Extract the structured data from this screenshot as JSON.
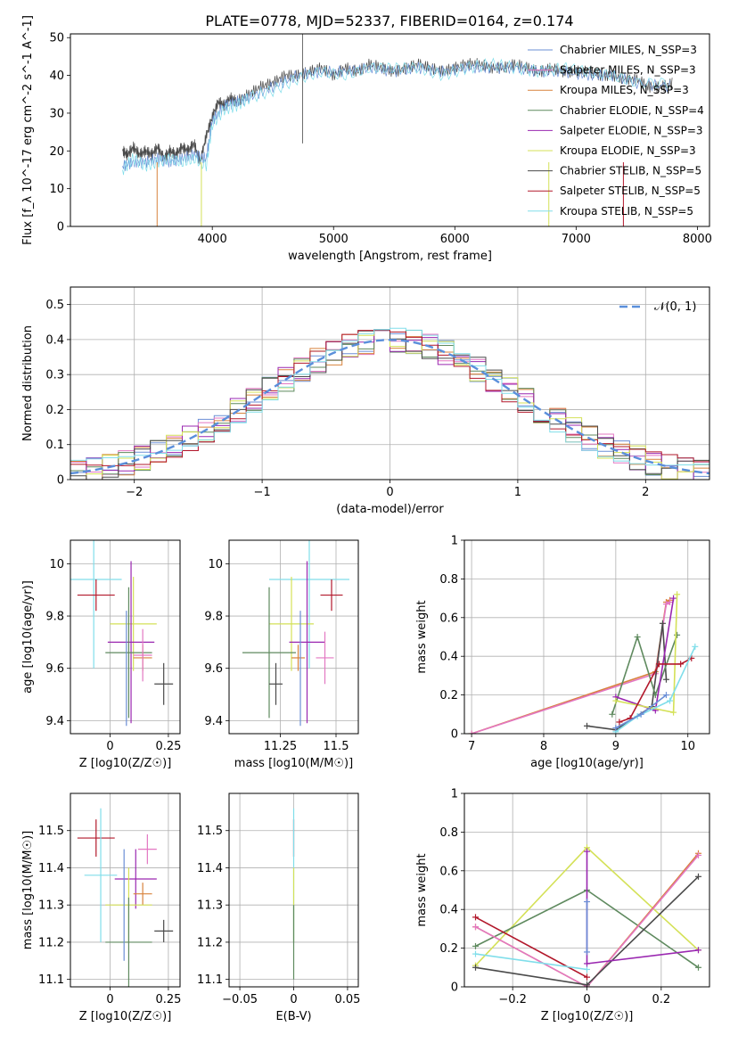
{
  "figure_title": "PLATE=0778, MJD=52337, FIBERID=0164, z=0.174",
  "colors": {
    "chabrier_miles": "#6b8fd6",
    "salpeter_miles": "#e377c2",
    "kroupa_miles": "#d8823c",
    "chabrier_elodie": "#5f8a5f",
    "salpeter_elodie": "#9a27b0",
    "kroupa_elodie": "#d4e157",
    "chabrier_stelib": "#4a4a4a",
    "salpeter_stelib": "#b2182b",
    "kroupa_stelib": "#80deea",
    "normal_curve": "#5a8fdb"
  },
  "chart_data": [
    {
      "id": "spectrum",
      "type": "line",
      "xlabel": "wavelength [Angstrom, rest frame]",
      "ylabel": "Flux [f_λ 10^-17 erg cm^-2 s^-1 A^-1]",
      "xlim": [
        2830,
        8100
      ],
      "ylim": [
        0,
        51
      ],
      "xticks": [
        4000,
        5000,
        6000,
        7000,
        8000
      ],
      "yticks": [
        0,
        10,
        20,
        30,
        40,
        50
      ],
      "grid": false,
      "legend_position": "top-right",
      "legend": [
        {
          "label": "Chabrier MILES, N_SSP=3",
          "color": "#6b8fd6"
        },
        {
          "label": "Salpeter MILES, N_SSP=3",
          "color": "#e377c2"
        },
        {
          "label": "Kroupa MILES, N_SSP=3",
          "color": "#d8823c"
        },
        {
          "label": "Chabrier ELODIE, N_SSP=4",
          "color": "#5f8a5f"
        },
        {
          "label": "Salpeter ELODIE, N_SSP=3",
          "color": "#9a27b0"
        },
        {
          "label": "Kroupa ELODIE, N_SSP=3",
          "color": "#d4e157"
        },
        {
          "label": "Chabrier STELIB, N_SSP=5",
          "color": "#4a4a4a"
        },
        {
          "label": "Salpeter STELIB, N_SSP=5",
          "color": "#b2182b"
        },
        {
          "label": "Kroupa STELIB, N_SSP=5",
          "color": "#80deea"
        }
      ],
      "series": [
        {
          "color": "#4a4a4a",
          "x": [
            3260,
            3300,
            3350,
            3400,
            3450,
            3500,
            3550,
            3600,
            3650,
            3700,
            3750,
            3800,
            3850,
            3900,
            3950,
            4000,
            4050,
            4100,
            4150,
            4200,
            4300,
            4400,
            4500,
            4600,
            4700,
            4800,
            4900,
            5000,
            5100,
            5200,
            5300,
            5400,
            5500,
            5600,
            5700,
            5800,
            5900,
            6000,
            6100,
            6200,
            6300,
            6400,
            6500,
            6600,
            6700,
            6800,
            6900,
            7000,
            7100,
            7200,
            7300,
            7400,
            7500,
            7600,
            7700,
            7800
          ],
          "y": [
            20,
            19,
            21,
            19,
            20,
            19,
            21,
            18,
            20,
            19,
            21,
            20,
            22,
            17,
            24,
            29,
            33,
            32,
            34,
            33,
            35,
            37,
            38,
            40,
            40,
            41,
            42,
            40,
            42,
            41,
            43,
            42,
            41,
            42,
            43,
            42,
            41,
            42,
            43,
            43,
            42,
            42,
            43,
            42,
            41,
            42,
            41,
            41,
            41,
            40,
            40,
            39,
            39,
            37,
            37,
            38
          ]
        },
        {
          "color": "#6b8fd6",
          "x": [
            3260,
            3350,
            3450,
            3550,
            3650,
            3750,
            3850,
            3950,
            4000,
            4100,
            4200,
            4300,
            4500,
            4700,
            4900,
            5100,
            5300,
            5500,
            5700,
            5900,
            6100,
            6300,
            6500,
            6700,
            6900,
            7100,
            7300,
            7500,
            7800
          ],
          "y": [
            16,
            17,
            17,
            18,
            17,
            18,
            19,
            18,
            28,
            32,
            33,
            34,
            37,
            40,
            41,
            41,
            42,
            41,
            42,
            41,
            42,
            42,
            42,
            41,
            41,
            40,
            40,
            38,
            37
          ]
        },
        {
          "color": "#80deea",
          "x": [
            3260,
            3350,
            3450,
            3550,
            3650,
            3750,
            3850,
            3950,
            4000,
            4100,
            4200,
            4300,
            4500,
            4700,
            4900,
            5100,
            5300,
            5500,
            5700,
            5900,
            6100,
            6300,
            6500,
            6700,
            6900,
            7100,
            7300,
            7500,
            7800
          ],
          "y": [
            15,
            18,
            16,
            17,
            18,
            17,
            18,
            16,
            27,
            31,
            32,
            34,
            36,
            39,
            41,
            40,
            42,
            42,
            42,
            40,
            42,
            43,
            42,
            41,
            42,
            41,
            40,
            38,
            38
          ]
        }
      ],
      "drops": [
        {
          "x": 3545,
          "color": "#d8823c"
        },
        {
          "x": 3910,
          "color": "#d4e157"
        },
        {
          "x": 6775,
          "color": "#d4e157"
        },
        {
          "x": 7390,
          "color": "#b2182b"
        }
      ]
    },
    {
      "id": "residuals",
      "type": "line",
      "xlabel": "(data-model)/error",
      "ylabel": "Normed distribution",
      "xlim": [
        -2.5,
        2.5
      ],
      "ylim": [
        0,
        0.55
      ],
      "xticks": [
        -2,
        -1,
        0,
        1,
        2
      ],
      "yticks": [
        0.0,
        0.1,
        0.2,
        0.3,
        0.4,
        0.5
      ],
      "grid": true,
      "legend_position": "top-right",
      "legend_label": "𝒩(0, 1)",
      "curve": "normal(0,1)"
    },
    {
      "id": "age_vs_Z",
      "type": "scatter",
      "xlabel": "Z [log10(Z/Z☉)]",
      "ylabel": "age  [log10(age/yr)]",
      "xlim": [
        -0.17,
        0.3
      ],
      "ylim": [
        9.35,
        10.09
      ],
      "xticks": [
        0.0,
        0.25
      ],
      "yticks": [
        9.4,
        9.6,
        9.8,
        10.0
      ],
      "grid": true,
      "points": [
        {
          "x": -0.07,
          "y": 9.94,
          "xerr": 0.12,
          "yerr": 0.34,
          "color": "#80deea"
        },
        {
          "x": -0.06,
          "y": 9.88,
          "xerr": 0.08,
          "yerr": 0.06,
          "color": "#b2182b"
        },
        {
          "x": 0.1,
          "y": 9.77,
          "xerr": 0.1,
          "yerr": 0.18,
          "color": "#d4e157"
        },
        {
          "x": 0.09,
          "y": 9.7,
          "xerr": 0.1,
          "yerr": 0.31,
          "color": "#9a27b0"
        },
        {
          "x": 0.08,
          "y": 9.66,
          "xerr": 0.1,
          "yerr": 0.25,
          "color": "#5f8a5f"
        },
        {
          "x": 0.14,
          "y": 9.64,
          "xerr": 0.04,
          "yerr": 0.05,
          "color": "#d8823c"
        },
        {
          "x": 0.14,
          "y": 9.65,
          "xerr": 0.04,
          "yerr": 0.1,
          "color": "#e377c2"
        },
        {
          "x": 0.23,
          "y": 9.54,
          "xerr": 0.04,
          "yerr": 0.08,
          "color": "#4a4a4a"
        },
        {
          "x": 0.07,
          "y": 9.6,
          "xerr": 0.0,
          "yerr": 0.22,
          "color": "#6b8fd6"
        }
      ]
    },
    {
      "id": "age_vs_mass",
      "type": "scatter",
      "xlabel": "mass [log10(M/M☉)]",
      "ylabel": "",
      "xlim": [
        11.02,
        11.6
      ],
      "ylim": [
        9.35,
        10.09
      ],
      "xticks": [
        11.25,
        11.5
      ],
      "yticks": [
        9.4,
        9.6,
        9.8,
        10.0
      ],
      "grid": true,
      "points": [
        {
          "x": 11.38,
          "y": 9.94,
          "xerr": 0.18,
          "yerr": 0.34,
          "color": "#80deea"
        },
        {
          "x": 11.48,
          "y": 9.88,
          "xerr": 0.05,
          "yerr": 0.06,
          "color": "#b2182b"
        },
        {
          "x": 11.3,
          "y": 9.77,
          "xerr": 0.1,
          "yerr": 0.18,
          "color": "#d4e157"
        },
        {
          "x": 11.37,
          "y": 9.7,
          "xerr": 0.08,
          "yerr": 0.31,
          "color": "#9a27b0"
        },
        {
          "x": 11.2,
          "y": 9.66,
          "xerr": 0.12,
          "yerr": 0.25,
          "color": "#5f8a5f"
        },
        {
          "x": 11.33,
          "y": 9.64,
          "xerr": 0.03,
          "yerr": 0.05,
          "color": "#d8823c"
        },
        {
          "x": 11.45,
          "y": 9.64,
          "xerr": 0.04,
          "yerr": 0.1,
          "color": "#e377c2"
        },
        {
          "x": 11.23,
          "y": 9.54,
          "xerr": 0.03,
          "yerr": 0.08,
          "color": "#4a4a4a"
        },
        {
          "x": 11.34,
          "y": 9.6,
          "xerr": 0.0,
          "yerr": 0.22,
          "color": "#6b8fd6"
        }
      ]
    },
    {
      "id": "weight_vs_age",
      "type": "line",
      "xlabel": "age  [log10(age/yr)]",
      "ylabel": "mass weight",
      "xlim": [
        6.9,
        10.3
      ],
      "ylim": [
        0,
        1.0
      ],
      "xticks": [
        7,
        8,
        9,
        10
      ],
      "yticks": [
        0.0,
        0.2,
        0.4,
        0.6,
        0.8,
        1.0
      ],
      "grid": true,
      "series": [
        {
          "color": "#d8823c",
          "x": [
            7.0,
            9.55,
            9.7,
            9.75
          ],
          "y": [
            0.0,
            0.32,
            0.68,
            0.69
          ]
        },
        {
          "color": "#e377c2",
          "x": [
            7.0,
            9.55,
            9.7,
            9.75
          ],
          "y": [
            0.0,
            0.31,
            0.67,
            0.68
          ]
        },
        {
          "color": "#4a4a4a",
          "x": [
            8.6,
            9.0,
            9.5,
            9.65,
            9.7
          ],
          "y": [
            0.04,
            0.02,
            0.14,
            0.57,
            0.28
          ]
        },
        {
          "color": "#5f8a5f",
          "x": [
            8.95,
            9.3,
            9.55,
            9.85
          ],
          "y": [
            0.1,
            0.5,
            0.2,
            0.51
          ]
        },
        {
          "color": "#9a27b0",
          "x": [
            9.0,
            9.55,
            9.8
          ],
          "y": [
            0.19,
            0.12,
            0.7
          ]
        },
        {
          "color": "#d4e157",
          "x": [
            9.0,
            9.8,
            9.85
          ],
          "y": [
            0.17,
            0.11,
            0.72
          ]
        },
        {
          "color": "#b2182b",
          "x": [
            9.05,
            9.2,
            9.6,
            9.9,
            10.05
          ],
          "y": [
            0.06,
            0.08,
            0.36,
            0.36,
            0.39
          ]
        },
        {
          "color": "#80deea",
          "x": [
            9.0,
            9.3,
            9.75,
            10.1
          ],
          "y": [
            0.01,
            0.09,
            0.17,
            0.45
          ]
        },
        {
          "color": "#6b8fd6",
          "x": [
            9.0,
            9.35,
            9.7
          ],
          "y": [
            0.03,
            0.1,
            0.2
          ]
        }
      ]
    },
    {
      "id": "mass_vs_Z",
      "type": "scatter",
      "xlabel": "Z [log10(Z/Z☉)]",
      "ylabel": "mass [log10(M/M☉)]",
      "xlim": [
        -0.17,
        0.3
      ],
      "ylim": [
        11.08,
        11.6
      ],
      "xticks": [
        0.0,
        0.25
      ],
      "yticks": [
        11.1,
        11.2,
        11.3,
        11.4,
        11.5
      ],
      "grid": true,
      "points": [
        {
          "x": -0.06,
          "y": 11.48,
          "xerr": 0.08,
          "yerr": 0.05,
          "color": "#b2182b"
        },
        {
          "x": -0.04,
          "y": 11.38,
          "xerr": 0.07,
          "yerr": 0.18,
          "color": "#80deea"
        },
        {
          "x": 0.11,
          "y": 11.37,
          "xerr": 0.09,
          "yerr": 0.08,
          "color": "#9a27b0"
        },
        {
          "x": 0.16,
          "y": 11.45,
          "xerr": 0.04,
          "yerr": 0.04,
          "color": "#e377c2"
        },
        {
          "x": 0.14,
          "y": 11.33,
          "xerr": 0.04,
          "yerr": 0.03,
          "color": "#d8823c"
        },
        {
          "x": 0.08,
          "y": 11.3,
          "xerr": 0.1,
          "yerr": 0.1,
          "color": "#d4e157"
        },
        {
          "x": 0.08,
          "y": 11.2,
          "xerr": 0.1,
          "yerr": 0.12,
          "color": "#5f8a5f"
        },
        {
          "x": 0.23,
          "y": 11.23,
          "xerr": 0.04,
          "yerr": 0.03,
          "color": "#4a4a4a"
        },
        {
          "x": 0.06,
          "y": 11.3,
          "xerr": 0.0,
          "yerr": 0.15,
          "color": "#6b8fd6"
        }
      ]
    },
    {
      "id": "mass_vs_ebv",
      "type": "scatter",
      "xlabel": "E(B-V)",
      "ylabel": "",
      "xlim": [
        -0.06,
        0.06
      ],
      "ylim": [
        11.08,
        11.6
      ],
      "xticks": [
        -0.05,
        0.0,
        0.05
      ],
      "yticks": [
        11.1,
        11.2,
        11.3,
        11.4,
        11.5
      ],
      "grid": true,
      "points": [
        {
          "x": 0.0,
          "y": 11.48,
          "xerr": 0.0,
          "yerr": 0.05,
          "color": "#b2182b"
        },
        {
          "x": 0.0,
          "y": 11.38,
          "xerr": 0.0,
          "yerr": 0.18,
          "color": "#80deea"
        },
        {
          "x": 0.0,
          "y": 11.3,
          "xerr": 0.0,
          "yerr": 0.1,
          "color": "#d4e157"
        },
        {
          "x": 0.0,
          "y": 11.2,
          "xerr": 0.0,
          "yerr": 0.1,
          "color": "#5f8a5f"
        }
      ]
    },
    {
      "id": "weight_vs_Z",
      "type": "line",
      "xlabel": "Z [log10(Z/Z☉)]",
      "ylabel": "mass weight",
      "xlim": [
        -0.33,
        0.33
      ],
      "ylim": [
        0,
        1.0
      ],
      "xticks": [
        -0.2,
        0.0,
        0.2
      ],
      "yticks": [
        0.0,
        0.2,
        0.4,
        0.6,
        0.8,
        1.0
      ],
      "grid": true,
      "series": [
        {
          "color": "#d4e157",
          "x": [
            -0.3,
            0.0,
            0.3
          ],
          "y": [
            0.11,
            0.72,
            0.19
          ]
        },
        {
          "color": "#5f8a5f",
          "x": [
            -0.3,
            0.0,
            0.3
          ],
          "y": [
            0.21,
            0.5,
            0.1
          ]
        },
        {
          "color": "#b2182b",
          "x": [
            -0.3,
            0.0
          ],
          "y": [
            0.36,
            0.05
          ]
        },
        {
          "color": "#d8823c",
          "x": [
            -0.3,
            0.0,
            0.3
          ],
          "y": [
            0.31,
            0.0,
            0.69
          ]
        },
        {
          "color": "#e377c2",
          "x": [
            -0.3,
            0.0,
            0.3
          ],
          "y": [
            0.31,
            0.0,
            0.68
          ]
        },
        {
          "color": "#4a4a4a",
          "x": [
            -0.3,
            0.0,
            0.3
          ],
          "y": [
            0.1,
            0.01,
            0.57
          ]
        },
        {
          "color": "#80deea",
          "x": [
            -0.3,
            0.0
          ],
          "y": [
            0.17,
            0.09
          ]
        },
        {
          "color": "#9a27b0",
          "x": [
            0.0,
            0.0,
            0.3
          ],
          "y": [
            0.7,
            0.12,
            0.19
          ]
        },
        {
          "color": "#6b8fd6",
          "x": [
            0.0,
            0.0
          ],
          "y": [
            0.18,
            0.44
          ]
        }
      ]
    }
  ]
}
